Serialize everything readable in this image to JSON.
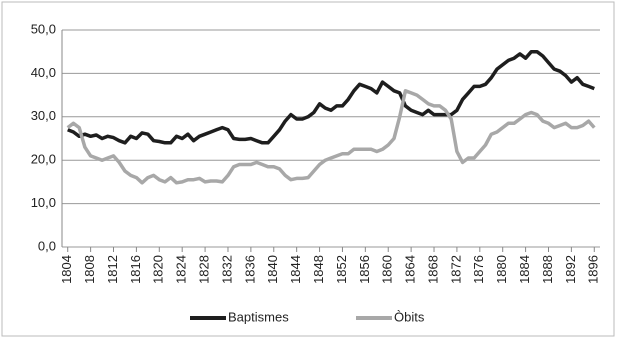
{
  "chart_data": {
    "type": "line",
    "x": [
      1804,
      1805,
      1806,
      1807,
      1808,
      1809,
      1810,
      1811,
      1812,
      1813,
      1814,
      1815,
      1816,
      1817,
      1818,
      1819,
      1820,
      1821,
      1822,
      1823,
      1824,
      1825,
      1826,
      1827,
      1828,
      1829,
      1830,
      1831,
      1832,
      1833,
      1834,
      1835,
      1836,
      1837,
      1838,
      1839,
      1840,
      1841,
      1842,
      1843,
      1844,
      1845,
      1846,
      1847,
      1848,
      1849,
      1850,
      1851,
      1852,
      1853,
      1854,
      1855,
      1856,
      1857,
      1858,
      1859,
      1860,
      1861,
      1862,
      1863,
      1864,
      1865,
      1866,
      1867,
      1868,
      1869,
      1870,
      1871,
      1872,
      1873,
      1874,
      1875,
      1876,
      1877,
      1878,
      1879,
      1880,
      1881,
      1882,
      1883,
      1884,
      1885,
      1886,
      1887,
      1888,
      1889,
      1890,
      1891,
      1892,
      1893,
      1894,
      1895,
      1896
    ],
    "series": [
      {
        "name": "Baptismes",
        "color": "#1e1e1e",
        "values": [
          27,
          26.5,
          25.5,
          26,
          25.5,
          25.8,
          25,
          25.5,
          25.2,
          24.5,
          24,
          25.5,
          25,
          26.3,
          26,
          24.5,
          24.3,
          24,
          24,
          25.5,
          25,
          26,
          24.5,
          25.5,
          26,
          26.5,
          27,
          27.5,
          27,
          25,
          24.8,
          24.8,
          25,
          24.5,
          24,
          24,
          25.5,
          27,
          29,
          30.5,
          29.5,
          29.5,
          30,
          31,
          33,
          32,
          31.5,
          32.5,
          32.5,
          34,
          36,
          37.5,
          37,
          36.5,
          35.5,
          38,
          37,
          36,
          35.5,
          32.5,
          31.5,
          31,
          30.5,
          31.5,
          30.5,
          30.5,
          30.5,
          30.5,
          31.5,
          34,
          35.5,
          37,
          37,
          37.5,
          39,
          41,
          42,
          43,
          43.5,
          44.5,
          43.5,
          45,
          45,
          44,
          42.5,
          41,
          40.5,
          39.5,
          38,
          39,
          37.5,
          37,
          36.5
        ]
      },
      {
        "name": "Òbits",
        "color": "#a8a8a8",
        "values": [
          27.5,
          28.5,
          27.5,
          23,
          21,
          20.5,
          20,
          20.5,
          21,
          19.5,
          17.5,
          16.5,
          16,
          14.8,
          16,
          16.5,
          15.5,
          15,
          16,
          14.8,
          15,
          15.5,
          15.5,
          15.8,
          15,
          15.2,
          15.2,
          15,
          16.5,
          18.5,
          19,
          19,
          19,
          19.5,
          19,
          18.5,
          18.5,
          18,
          16.5,
          15.5,
          15.8,
          15.8,
          16,
          17.5,
          19,
          20,
          20.5,
          21,
          21.5,
          21.5,
          22.5,
          22.5,
          22.5,
          22.5,
          22,
          22.5,
          23.5,
          25,
          30,
          36,
          35.5,
          35,
          34,
          33,
          32.5,
          32.5,
          31.5,
          29.5,
          22,
          19.5,
          20.5,
          20.5,
          22,
          23.5,
          26,
          26.5,
          27.5,
          28.5,
          28.5,
          29.5,
          30.5,
          31,
          30.5,
          29,
          28.5,
          27.5,
          28,
          28.5,
          27.5,
          27.5,
          28,
          29,
          27.5
        ]
      }
    ],
    "xlim": [
      1803,
      1897
    ],
    "xticks": [
      1804,
      1808,
      1812,
      1816,
      1820,
      1824,
      1828,
      1832,
      1836,
      1840,
      1844,
      1848,
      1852,
      1856,
      1860,
      1864,
      1868,
      1872,
      1876,
      1880,
      1884,
      1888,
      1892,
      1896
    ],
    "ylim": [
      0,
      50
    ],
    "yticks": [
      {
        "value": 0,
        "label": "0,0"
      },
      {
        "value": 10,
        "label": "10,0"
      },
      {
        "value": 20,
        "label": "20,0"
      },
      {
        "value": 30,
        "label": "30,0"
      },
      {
        "value": 40,
        "label": "40,0"
      },
      {
        "value": 50,
        "label": "50,0"
      }
    ],
    "grid": true,
    "legend": "bottom"
  }
}
